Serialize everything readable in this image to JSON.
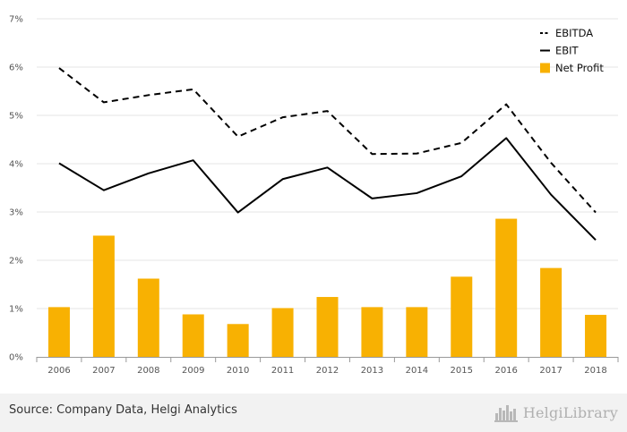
{
  "chart_data": {
    "type": "bar",
    "categories": [
      "2006",
      "2007",
      "2008",
      "2009",
      "2010",
      "2011",
      "2012",
      "2013",
      "2014",
      "2015",
      "2016",
      "2017",
      "2018"
    ],
    "series": [
      {
        "name": "EBITDA",
        "kind": "line",
        "style": "dashed",
        "color": "#000000",
        "values": [
          5.98,
          5.27,
          5.42,
          5.54,
          4.56,
          4.96,
          5.09,
          4.2,
          4.21,
          4.43,
          5.23,
          4.02,
          2.99
        ]
      },
      {
        "name": "EBIT",
        "kind": "line",
        "style": "solid",
        "color": "#000000",
        "values": [
          4.01,
          3.45,
          3.8,
          4.07,
          2.99,
          3.68,
          3.92,
          3.28,
          3.39,
          3.74,
          4.53,
          3.36,
          2.42
        ]
      },
      {
        "name": "Net Profit",
        "kind": "bar",
        "color": "#f8b102",
        "values": [
          1.03,
          2.51,
          1.62,
          0.88,
          0.68,
          1.01,
          1.24,
          1.03,
          1.03,
          1.66,
          2.86,
          1.84,
          0.87
        ]
      }
    ],
    "yticks": [
      "0%",
      "1%",
      "2%",
      "3%",
      "4%",
      "5%",
      "6%",
      "7%"
    ],
    "ylim": [
      0,
      7
    ],
    "grid": true,
    "legend_position": "top-right"
  },
  "footer": {
    "source": "Source: Company Data, Helgi Analytics",
    "brand": "HelgiLibrary",
    "brand_icon": "city-skyline-icon"
  }
}
